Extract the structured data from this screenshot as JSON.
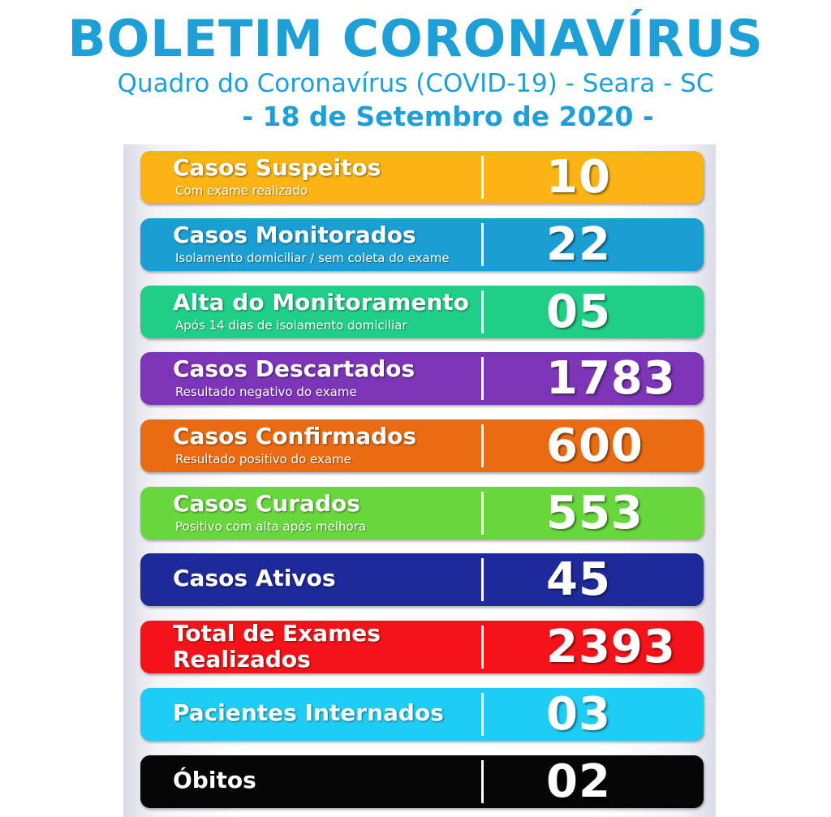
{
  "header": {
    "title": "BOLETIM CORONAVÍRUS",
    "subtitle": "Quadro do Coronavírus (COVID-19)  - Seara - SC",
    "date": "- 18 de Setembro de 2020 -"
  },
  "rows": [
    {
      "label": "Casos Suspeitos",
      "sub": "Com exame realizado",
      "value": "10",
      "color": "#fbb413"
    },
    {
      "label": "Casos Monitorados",
      "sub": "Isolamento domiciliar / sem coleta do exame",
      "value": "22",
      "color": "#1b9fd3"
    },
    {
      "label": "Alta do Monitoramento",
      "sub": "Após 14 dias de isolamento domiciliar",
      "value": "05",
      "color": "#1fcf88"
    },
    {
      "label": "Casos Descartados",
      "sub": "Resultado negativo do exame",
      "value": "1783",
      "color": "#7d35b8"
    },
    {
      "label": "Casos Confirmados",
      "sub": "Resultado positivo do exame",
      "value": "600",
      "color": "#ea6b12"
    },
    {
      "label": "Casos Curados",
      "sub": "Positivo com alta após melhora",
      "value": "553",
      "color": "#67d83b"
    },
    {
      "label": "Casos Ativos",
      "sub": "",
      "value": "45",
      "color": "#1f2a9a"
    },
    {
      "label": "Total de Exames Realizados",
      "sub": "",
      "value": "2393",
      "color": "#f41318"
    },
    {
      "label": "Pacientes Internados",
      "sub": "",
      "value": "03",
      "color": "#1dcdf4"
    },
    {
      "label": "Óbitos",
      "sub": "",
      "value": "02",
      "color": "#050505"
    }
  ]
}
